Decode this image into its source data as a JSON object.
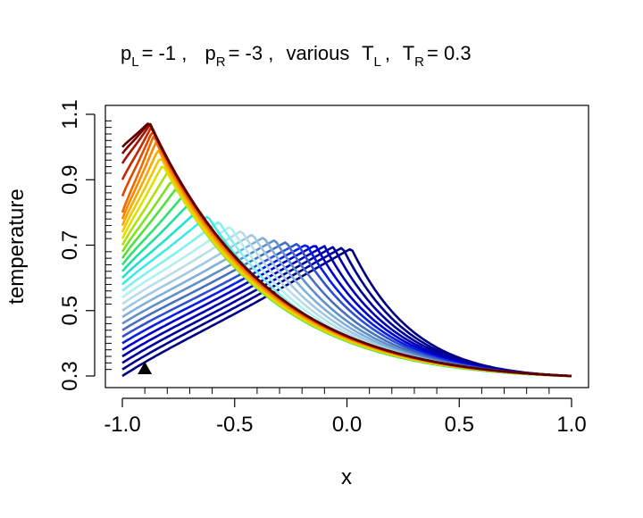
{
  "chart_data": {
    "type": "line",
    "title": {
      "p_left_symbol": "p",
      "p_left_sub": "L",
      "p_left_value": "= -1 ,",
      "p_right_symbol": "p",
      "p_right_sub": "R",
      "p_right_value": "= -3 ,",
      "various_text": "various",
      "t_left_symbol": "T",
      "t_left_sub": "L",
      "t_left_value": ",",
      "t_right_symbol": "T",
      "t_right_sub": "R",
      "t_right_value": "= 0.3"
    },
    "xlabel": "x",
    "ylabel": "temperature",
    "xlim": [
      -1.0,
      1.0
    ],
    "ylim": [
      0.3,
      1.1
    ],
    "x_ticks": [
      -1.0,
      -0.5,
      0.0,
      0.5,
      1.0
    ],
    "x_tick_labels": [
      "-1.0",
      "-0.5",
      "0.0",
      "0.5",
      "1.0"
    ],
    "y_ticks": [
      0.3,
      0.5,
      0.7,
      0.9,
      1.1
    ],
    "y_tick_labels": [
      "0.3",
      "0.5",
      "0.7",
      "0.9",
      "1.1"
    ],
    "y_minor_ticks": [
      0.32,
      0.34,
      0.36,
      0.38,
      0.4,
      0.42,
      0.44,
      0.46,
      0.48,
      0.52,
      0.54,
      0.56,
      0.58,
      0.6,
      0.62,
      0.64,
      0.66,
      0.68,
      0.72,
      0.74,
      0.76,
      0.78,
      0.8,
      0.82,
      0.84,
      0.86,
      0.88,
      0.92,
      0.94,
      0.96,
      0.98,
      1.0,
      1.02,
      1.04,
      1.06,
      1.08
    ],
    "x_minor_ticks": [
      -0.9,
      -0.8,
      -0.7,
      -0.6,
      -0.4,
      -0.3,
      -0.2,
      -0.1,
      0.1,
      0.2,
      0.3,
      0.4,
      0.6,
      0.7,
      0.8,
      0.9
    ],
    "grid": false,
    "legend": "none",
    "series_colors": [
      "#000080",
      "#00008e",
      "#00009c",
      "#0000b4",
      "#0000cd",
      "#0a1ee6",
      "#3050d0",
      "#4a70c0",
      "#6090c8",
      "#80b0d8",
      "#a0c8e0",
      "#b8dce8",
      "#b0f0f0",
      "#80f0f0",
      "#40e8e8",
      "#20e0d0",
      "#20e0a0",
      "#30e070",
      "#50e040",
      "#80e020",
      "#b0e010",
      "#e0e000",
      "#f0c800",
      "#f8a800",
      "#f88800",
      "#f06800",
      "#e04800",
      "#c82800",
      "#a81000",
      "#800000",
      "#5a0000"
    ],
    "series": [
      {
        "T_left": 0.3,
        "peak_x": 0.02,
        "peak_y": 0.69
      },
      {
        "T_left": 0.32,
        "peak_x": -0.02,
        "peak_y": 0.693
      },
      {
        "T_left": 0.34,
        "peak_x": -0.06,
        "peak_y": 0.695
      },
      {
        "T_left": 0.36,
        "peak_x": -0.1,
        "peak_y": 0.697
      },
      {
        "T_left": 0.38,
        "peak_x": -0.14,
        "peak_y": 0.7
      },
      {
        "T_left": 0.4,
        "peak_x": -0.18,
        "peak_y": 0.702
      },
      {
        "T_left": 0.42,
        "peak_x": -0.22,
        "peak_y": 0.705
      },
      {
        "T_left": 0.44,
        "peak_x": -0.27,
        "peak_y": 0.71
      },
      {
        "T_left": 0.46,
        "peak_x": -0.32,
        "peak_y": 0.716
      },
      {
        "T_left": 0.48,
        "peak_x": -0.37,
        "peak_y": 0.724
      },
      {
        "T_left": 0.5,
        "peak_x": -0.42,
        "peak_y": 0.733
      },
      {
        "T_left": 0.52,
        "peak_x": -0.47,
        "peak_y": 0.744
      },
      {
        "T_left": 0.54,
        "peak_x": -0.52,
        "peak_y": 0.757
      },
      {
        "T_left": 0.56,
        "peak_x": -0.57,
        "peak_y": 0.772
      },
      {
        "T_left": 0.58,
        "peak_x": -0.62,
        "peak_y": 0.789
      },
      {
        "T_left": 0.6,
        "peak_x": -0.66,
        "peak_y": 0.808
      },
      {
        "T_left": 0.62,
        "peak_x": -0.7,
        "peak_y": 0.828
      },
      {
        "T_left": 0.64,
        "peak_x": -0.73,
        "peak_y": 0.85
      },
      {
        "T_left": 0.66,
        "peak_x": -0.76,
        "peak_y": 0.873
      },
      {
        "T_left": 0.68,
        "peak_x": -0.78,
        "peak_y": 0.897
      },
      {
        "T_left": 0.7,
        "peak_x": -0.8,
        "peak_y": 0.922
      },
      {
        "T_left": 0.72,
        "peak_x": -0.82,
        "peak_y": 0.946
      },
      {
        "T_left": 0.74,
        "peak_x": -0.83,
        "peak_y": 0.97
      },
      {
        "T_left": 0.76,
        "peak_x": -0.84,
        "peak_y": 0.993
      },
      {
        "T_left": 0.78,
        "peak_x": -0.85,
        "peak_y": 1.015
      },
      {
        "T_left": 0.8,
        "peak_x": -0.86,
        "peak_y": 1.035
      },
      {
        "T_left": 0.85,
        "peak_x": -0.865,
        "peak_y": 1.05
      },
      {
        "T_left": 0.9,
        "peak_x": -0.87,
        "peak_y": 1.062
      },
      {
        "T_left": 0.95,
        "peak_x": -0.875,
        "peak_y": 1.07
      },
      {
        "T_left": 0.98,
        "peak_x": -0.88,
        "peak_y": 1.074
      },
      {
        "T_left": 1.0,
        "peak_x": -0.88,
        "peak_y": 1.076
      }
    ],
    "right_endpoint": {
      "x": 1.0,
      "y": 0.3
    },
    "marker": {
      "shape": "triangle",
      "x": -0.9,
      "y": 0.322,
      "color": "#000000"
    }
  }
}
